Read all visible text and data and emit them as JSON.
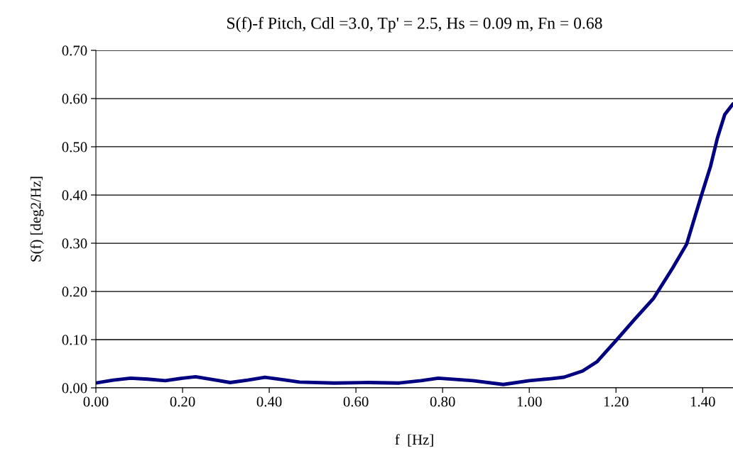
{
  "chart_data": {
    "type": "line",
    "title": "S(f)-f Pitch, Cdl =3.0, Tp' = 2.5, Hs = 0.09 m, Fn = 0.68",
    "xlabel": "f  [Hz]",
    "ylabel": "S(f) [deg2/Hz]",
    "series": [
      {
        "color": "#000080",
        "x": [
          0,
          0.04,
          0.08,
          0.12,
          0.16,
          0.2,
          0.23,
          0.27,
          0.31,
          0.35,
          0.39,
          0.43,
          0.47,
          0.55,
          0.63,
          0.7,
          0.75,
          0.79,
          0.87,
          0.94,
          1.0,
          1.05,
          1.08,
          1.123,
          1.156,
          1.2,
          1.243,
          1.287,
          1.331,
          1.363,
          1.396,
          1.418,
          1.434,
          1.451,
          1.47
        ],
        "values": [
          0.01,
          0.016,
          0.02,
          0.018,
          0.015,
          0.02,
          0.023,
          0.017,
          0.011,
          0.016,
          0.022,
          0.017,
          0.012,
          0.01,
          0.011,
          0.01,
          0.015,
          0.02,
          0.015,
          0.007,
          0.015,
          0.019,
          0.022,
          0.035,
          0.054,
          0.098,
          0.142,
          0.186,
          0.249,
          0.298,
          0.396,
          0.459,
          0.518,
          0.567,
          0.589
        ]
      }
    ],
    "xlim": [
      0,
      1.47
    ],
    "xticks": [
      {
        "value": 0,
        "label": "0.00"
      },
      {
        "value": 0.2,
        "label": "0.20"
      },
      {
        "value": 0.4,
        "label": "0.40"
      },
      {
        "value": 0.6,
        "label": "0.60"
      },
      {
        "value": 0.8,
        "label": "0.80"
      },
      {
        "value": 1.0,
        "label": "1.00"
      },
      {
        "value": 1.2,
        "label": "1.20"
      },
      {
        "value": 1.4,
        "label": "1.40"
      }
    ],
    "ylim": [
      0,
      0.7
    ],
    "yticks": [
      {
        "value": 0,
        "label": "0.00"
      },
      {
        "value": 0.1,
        "label": "0.10"
      },
      {
        "value": 0.2,
        "label": "0.20"
      },
      {
        "value": 0.3,
        "label": "0.30"
      },
      {
        "value": 0.4,
        "label": "0.40"
      },
      {
        "value": 0.5,
        "label": "0.50"
      },
      {
        "value": 0.6,
        "label": "0.60"
      },
      {
        "value": 0.7,
        "label": "0.70"
      }
    ],
    "grid": "y",
    "marker": "none",
    "line_style": "solid"
  }
}
